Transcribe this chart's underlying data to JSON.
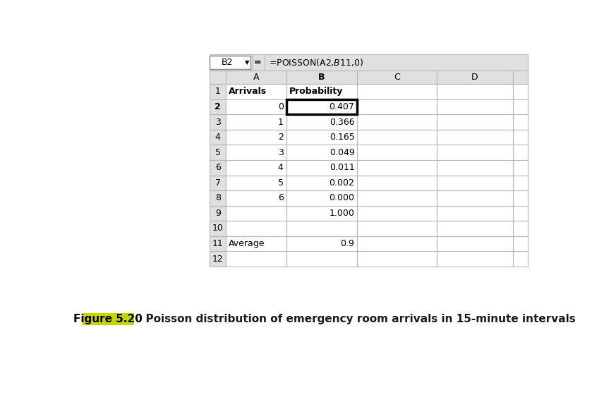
{
  "formula_bar_cell": "B2",
  "formula_bar_formula": "=POISSON(A2,$B$11,0)",
  "figure_label": "Figure 5.20",
  "figure_label_bg": "#c8d400",
  "figure_caption": "  Poisson distribution of emergency room arrivals in 15-minute intervals",
  "bg_color": "#ffffff",
  "grid_color": "#b8b8b8",
  "header_bg": "#e0e0e0",
  "formula_bar_bg": "#f0f0f0",
  "selected_cell_border": "#000000",
  "rows_data": [
    [
      "1",
      "Arrivals",
      "Probability"
    ],
    [
      "2",
      "0",
      "0.407"
    ],
    [
      "3",
      "1",
      "0.366"
    ],
    [
      "4",
      "2",
      "0.165"
    ],
    [
      "5",
      "3",
      "0.049"
    ],
    [
      "6",
      "4",
      "0.011"
    ],
    [
      "7",
      "5",
      "0.002"
    ],
    [
      "8",
      "6",
      "0.000"
    ],
    [
      "9",
      "",
      "1.000"
    ],
    [
      "10",
      "",
      ""
    ],
    [
      "11",
      "Average",
      "0.9"
    ],
    [
      "12",
      "",
      ""
    ]
  ]
}
